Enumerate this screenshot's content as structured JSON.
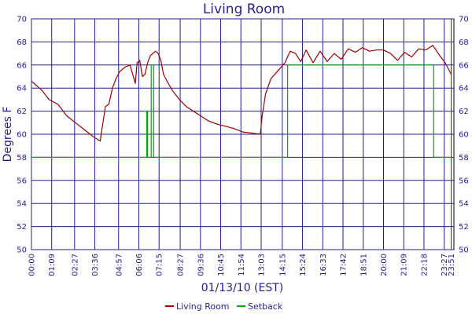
{
  "chart_data": {
    "type": "line",
    "title": "Living Room",
    "xlabel": "01/13/10 (EST)",
    "ylabel": "Degrees F",
    "ylim": [
      50,
      70
    ],
    "yticks": [
      50,
      52,
      54,
      56,
      58,
      60,
      62,
      64,
      66,
      68,
      70
    ],
    "x_unit": "time of day (hours)",
    "xlim": [
      0,
      24
    ],
    "xtick_labels": [
      "00:00",
      "01:09",
      "02:27",
      "03:36",
      "04:57",
      "06:06",
      "07:15",
      "08:27",
      "09:36",
      "10:45",
      "11:54",
      "13:03",
      "14:15",
      "15:24",
      "16:33",
      "17:42",
      "18:51",
      "20:00",
      "21:09",
      "22:18",
      "23:27",
      "23:51"
    ],
    "xtick_hours": [
      0,
      1.15,
      2.45,
      3.6,
      4.95,
      6.1,
      7.25,
      8.45,
      9.6,
      10.75,
      11.9,
      13.05,
      14.25,
      15.4,
      16.55,
      17.7,
      18.85,
      20.0,
      21.15,
      22.3,
      23.45,
      23.85
    ],
    "grid": true,
    "legend_position": "bottom",
    "series": [
      {
        "name": "Living Room",
        "color": "#9b0000",
        "x": [
          0.0,
          0.3,
          0.6,
          1.0,
          1.5,
          2.0,
          2.5,
          3.0,
          3.5,
          3.9,
          4.2,
          4.4,
          4.6,
          4.8,
          5.0,
          5.3,
          5.6,
          5.9,
          6.0,
          6.15,
          6.3,
          6.45,
          6.6,
          6.75,
          6.9,
          7.05,
          7.2,
          7.35,
          7.5,
          7.7,
          8.0,
          8.4,
          8.8,
          9.2,
          9.6,
          10.0,
          10.5,
          11.0,
          11.5,
          12.0,
          12.5,
          13.0,
          13.1,
          13.3,
          13.6,
          14.0,
          14.4,
          14.7,
          15.0,
          15.3,
          15.6,
          16.0,
          16.4,
          16.8,
          17.2,
          17.6,
          18.0,
          18.4,
          18.8,
          19.2,
          19.6,
          20.0,
          20.4,
          20.8,
          21.2,
          21.6,
          22.0,
          22.4,
          22.8,
          23.2,
          23.5,
          23.85
        ],
        "values": [
          64.6,
          64.2,
          63.8,
          63.0,
          62.6,
          61.6,
          61.0,
          60.4,
          59.8,
          59.4,
          62.4,
          62.6,
          64.0,
          64.8,
          65.4,
          65.8,
          66.0,
          64.4,
          66.2,
          66.4,
          65.0,
          65.2,
          66.2,
          66.8,
          67.0,
          67.2,
          67.0,
          66.4,
          65.2,
          64.6,
          63.8,
          63.0,
          62.4,
          62.0,
          61.6,
          61.2,
          60.9,
          60.7,
          60.5,
          60.2,
          60.1,
          60.0,
          61.5,
          63.5,
          64.8,
          65.5,
          66.2,
          67.2,
          67.0,
          66.3,
          67.3,
          66.2,
          67.2,
          66.3,
          67.0,
          66.5,
          67.4,
          67.1,
          67.5,
          67.2,
          67.3,
          67.3,
          67.0,
          66.4,
          67.1,
          66.7,
          67.4,
          67.3,
          67.7,
          66.8,
          66.2,
          65.2
        ]
      },
      {
        "name": "Setback",
        "color": "#00aa00",
        "x": [
          0,
          6.55,
          6.55,
          6.6,
          6.6,
          6.8,
          6.8,
          6.95,
          6.95,
          14.55,
          14.55,
          22.85,
          22.85,
          23.85
        ],
        "values": [
          58,
          58,
          62,
          62,
          58,
          58,
          66,
          66,
          58,
          58,
          66,
          66,
          58,
          58
        ]
      }
    ]
  }
}
